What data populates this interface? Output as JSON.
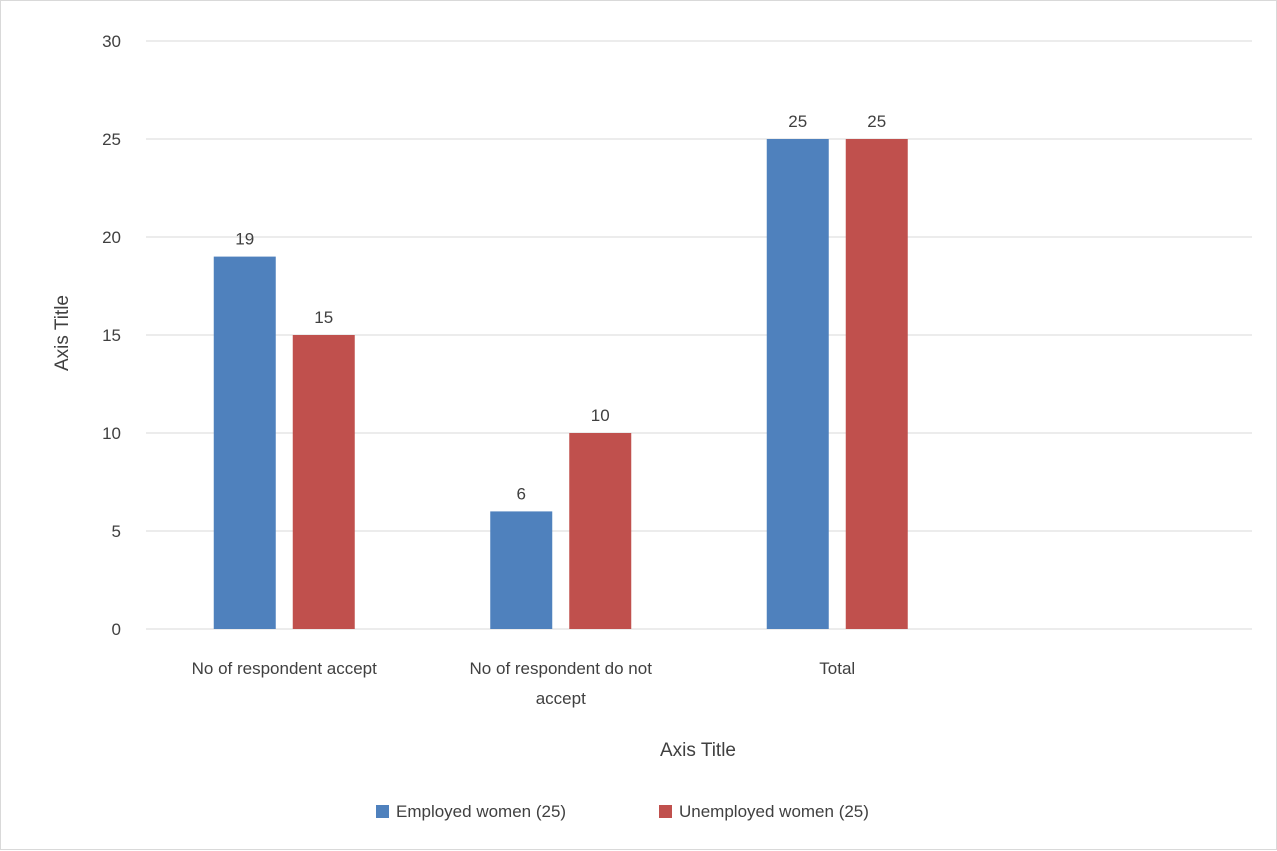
{
  "chart_data": {
    "type": "bar",
    "title": "",
    "xlabel": "Axis Title",
    "ylabel": "Axis Title",
    "ylim": [
      0,
      30
    ],
    "yticks": [
      0,
      5,
      10,
      15,
      20,
      25,
      30
    ],
    "grid": true,
    "legend_position": "bottom",
    "categories": [
      [
        "No of respondent accept"
      ],
      [
        "No of respondent do not",
        "accept"
      ],
      [
        "Total"
      ]
    ],
    "series": [
      {
        "name": "Employed women (25)",
        "values": [
          19,
          6,
          25
        ],
        "color": "#4f81bd"
      },
      {
        "name": "Unemployed women (25)",
        "values": [
          15,
          10,
          25
        ],
        "color": "#c0504d"
      }
    ]
  }
}
